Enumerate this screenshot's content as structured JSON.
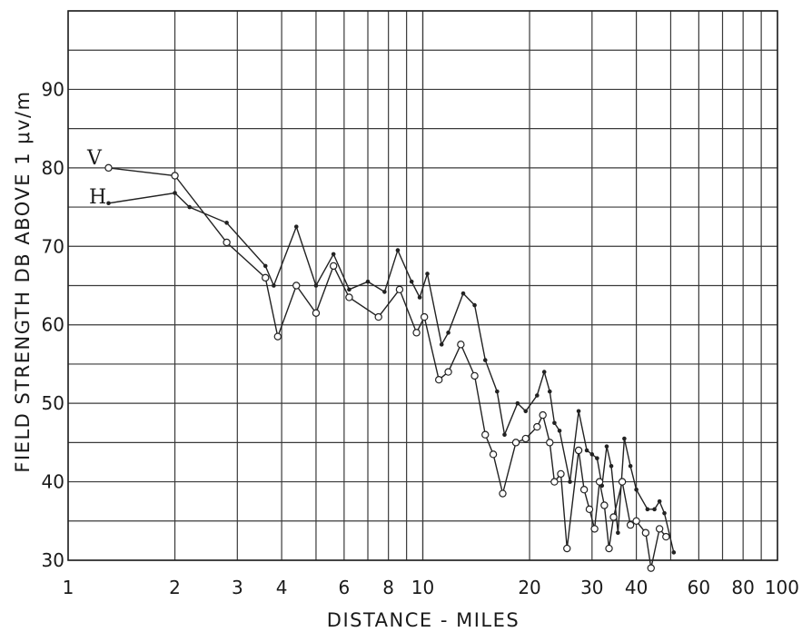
{
  "chart_data": {
    "type": "line",
    "xscale": "log",
    "xlim": [
      1,
      100
    ],
    "ylim": [
      30,
      100
    ],
    "xlabel": "DISTANCE - MILES",
    "ylabel": "FIELD STRENGTH DB ABOVE 1 μv/m",
    "x_tick_labels": [
      "1",
      "2",
      "3",
      "4",
      "6",
      "8",
      "10",
      "20",
      "30",
      "40",
      "60",
      "80",
      "100"
    ],
    "y_tick_labels": [
      "30",
      "40",
      "50",
      "60",
      "70",
      "80",
      "90"
    ],
    "grid": true,
    "series": [
      {
        "name": "V",
        "marker": "dot",
        "points": [
          [
            1.3,
            75.5
          ],
          [
            2.0,
            76.8
          ],
          [
            2.2,
            75.0
          ],
          [
            2.8,
            73.0
          ],
          [
            3.6,
            67.5
          ],
          [
            3.8,
            65.0
          ],
          [
            4.4,
            72.5
          ],
          [
            5.0,
            65.0
          ],
          [
            5.6,
            69.0
          ],
          [
            6.2,
            64.5
          ],
          [
            7.0,
            65.5
          ],
          [
            7.8,
            64.2
          ],
          [
            8.5,
            69.5
          ],
          [
            9.3,
            65.5
          ],
          [
            9.8,
            63.5
          ],
          [
            10.3,
            66.5
          ],
          [
            11.3,
            57.5
          ],
          [
            11.8,
            59.0
          ],
          [
            13.0,
            64.0
          ],
          [
            14.0,
            62.5
          ],
          [
            15.0,
            55.5
          ],
          [
            16.2,
            51.5
          ],
          [
            17.0,
            46.0
          ],
          [
            18.5,
            50.0
          ],
          [
            19.5,
            49.0
          ],
          [
            21.0,
            51.0
          ],
          [
            22.0,
            54.0
          ],
          [
            22.8,
            51.5
          ],
          [
            23.5,
            47.5
          ],
          [
            24.3,
            46.5
          ],
          [
            26.0,
            40.0
          ],
          [
            27.5,
            49.0
          ],
          [
            29.0,
            44.0
          ],
          [
            30.0,
            43.5
          ],
          [
            31.0,
            43.0
          ],
          [
            32.0,
            39.5
          ],
          [
            33.0,
            44.5
          ],
          [
            34.0,
            42.0
          ],
          [
            35.5,
            33.5
          ],
          [
            37.0,
            45.5
          ],
          [
            38.5,
            42.0
          ],
          [
            40.0,
            39.0
          ],
          [
            43.0,
            36.5
          ],
          [
            45.0,
            36.5
          ],
          [
            46.5,
            37.5
          ],
          [
            48.0,
            36.0
          ],
          [
            51.0,
            31.0
          ]
        ]
      },
      {
        "name": "H",
        "marker": "open-circle",
        "points": [
          [
            1.3,
            80.0
          ],
          [
            2.0,
            79.0
          ],
          [
            2.8,
            70.5
          ],
          [
            3.6,
            66.0
          ],
          [
            3.9,
            58.5
          ],
          [
            4.4,
            65.0
          ],
          [
            5.0,
            61.5
          ],
          [
            5.6,
            67.5
          ],
          [
            6.2,
            63.5
          ],
          [
            7.5,
            61.0
          ],
          [
            8.6,
            64.5
          ],
          [
            9.6,
            59.0
          ],
          [
            10.1,
            61.0
          ],
          [
            11.1,
            53.0
          ],
          [
            11.8,
            54.0
          ],
          [
            12.8,
            57.5
          ],
          [
            14.0,
            53.5
          ],
          [
            15.0,
            46.0
          ],
          [
            15.8,
            43.5
          ],
          [
            16.8,
            38.5
          ],
          [
            18.3,
            45.0
          ],
          [
            19.5,
            45.5
          ],
          [
            21.0,
            47.0
          ],
          [
            21.8,
            48.5
          ],
          [
            22.8,
            45.0
          ],
          [
            23.5,
            40.0
          ],
          [
            24.5,
            41.0
          ],
          [
            25.5,
            31.5
          ],
          [
            27.5,
            44.0
          ],
          [
            28.5,
            39.0
          ],
          [
            29.5,
            36.5
          ],
          [
            30.5,
            34.0
          ],
          [
            31.5,
            40.0
          ],
          [
            32.5,
            37.0
          ],
          [
            33.5,
            31.5
          ],
          [
            34.5,
            35.5
          ],
          [
            36.5,
            40.0
          ],
          [
            38.5,
            34.5
          ],
          [
            40.0,
            35.0
          ],
          [
            42.5,
            33.5
          ],
          [
            44.0,
            29.0
          ],
          [
            46.5,
            34.0
          ],
          [
            48.5,
            33.0
          ]
        ]
      }
    ]
  }
}
